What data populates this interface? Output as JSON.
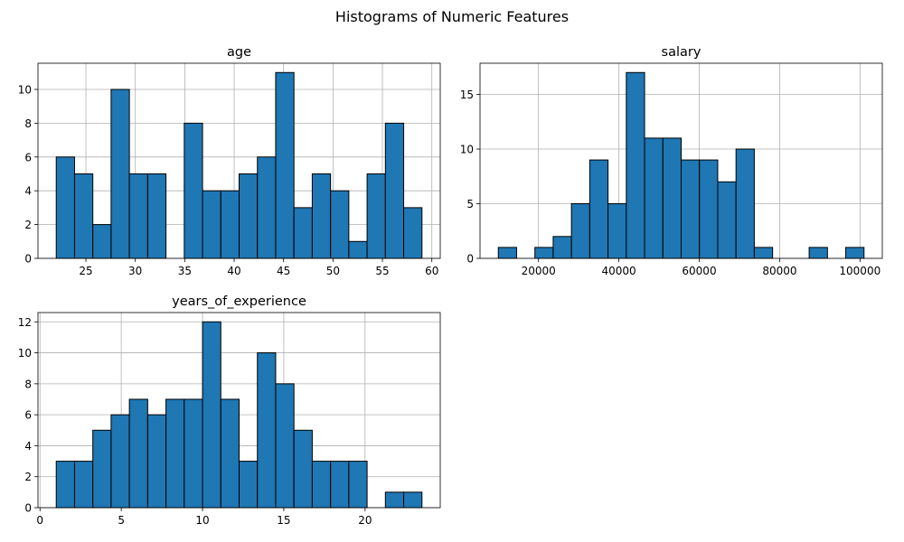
{
  "figure": {
    "title": "Histograms of Numeric Features"
  },
  "colors": {
    "bar_fill": "#1f77b4",
    "bar_edge": "#000000",
    "grid": "#b0b0b0",
    "axes": "#000000"
  },
  "chart_data": [
    {
      "type": "histogram",
      "title": "age",
      "xlabel": "",
      "ylabel": "",
      "grid": true,
      "bins": [
        {
          "x0": 22.0,
          "x1": 23.85,
          "count": 6
        },
        {
          "x0": 23.85,
          "x1": 25.7,
          "count": 5
        },
        {
          "x0": 25.7,
          "x1": 27.55,
          "count": 2
        },
        {
          "x0": 27.55,
          "x1": 29.4,
          "count": 10
        },
        {
          "x0": 29.4,
          "x1": 31.25,
          "count": 5
        },
        {
          "x0": 31.25,
          "x1": 33.1,
          "count": 5
        },
        {
          "x0": 33.1,
          "x1": 34.95,
          "count": 0
        },
        {
          "x0": 34.95,
          "x1": 36.8,
          "count": 8
        },
        {
          "x0": 36.8,
          "x1": 38.65,
          "count": 4
        },
        {
          "x0": 38.65,
          "x1": 40.5,
          "count": 4
        },
        {
          "x0": 40.5,
          "x1": 42.35,
          "count": 5
        },
        {
          "x0": 42.35,
          "x1": 44.2,
          "count": 6
        },
        {
          "x0": 44.2,
          "x1": 46.05,
          "count": 11
        },
        {
          "x0": 46.05,
          "x1": 47.9,
          "count": 3
        },
        {
          "x0": 47.9,
          "x1": 49.75,
          "count": 5
        },
        {
          "x0": 49.75,
          "x1": 51.6,
          "count": 4
        },
        {
          "x0": 51.6,
          "x1": 53.45,
          "count": 1
        },
        {
          "x0": 53.45,
          "x1": 55.3,
          "count": 5
        },
        {
          "x0": 55.3,
          "x1": 57.15,
          "count": 8
        },
        {
          "x0": 57.15,
          "x1": 59.0,
          "count": 3
        }
      ],
      "xlim": [
        20.15,
        60.85
      ],
      "ylim": [
        0,
        11.55
      ],
      "xticks": [
        25,
        30,
        35,
        40,
        45,
        50,
        55,
        60
      ],
      "xtick_labels": [
        "25",
        "30",
        "35",
        "40",
        "45",
        "50",
        "55",
        "60"
      ],
      "yticks": [
        0,
        2,
        4,
        6,
        8,
        10
      ],
      "ytick_labels": [
        "0",
        "2",
        "4",
        "6",
        "8",
        "10"
      ]
    },
    {
      "type": "histogram",
      "title": "salary",
      "xlabel": "",
      "ylabel": "",
      "grid": true,
      "bins": [
        {
          "x0": 10000,
          "x1": 14550,
          "count": 1
        },
        {
          "x0": 14550,
          "x1": 19100,
          "count": 0
        },
        {
          "x0": 19100,
          "x1": 23650,
          "count": 1
        },
        {
          "x0": 23650,
          "x1": 28200,
          "count": 2
        },
        {
          "x0": 28200,
          "x1": 32750,
          "count": 5
        },
        {
          "x0": 32750,
          "x1": 37300,
          "count": 9
        },
        {
          "x0": 37300,
          "x1": 41850,
          "count": 5
        },
        {
          "x0": 41850,
          "x1": 46400,
          "count": 17
        },
        {
          "x0": 46400,
          "x1": 50950,
          "count": 11
        },
        {
          "x0": 50950,
          "x1": 55500,
          "count": 11
        },
        {
          "x0": 55500,
          "x1": 60050,
          "count": 9
        },
        {
          "x0": 60050,
          "x1": 64600,
          "count": 9
        },
        {
          "x0": 64600,
          "x1": 69150,
          "count": 7
        },
        {
          "x0": 69150,
          "x1": 73700,
          "count": 10
        },
        {
          "x0": 73700,
          "x1": 78250,
          "count": 1
        },
        {
          "x0": 78250,
          "x1": 82800,
          "count": 0
        },
        {
          "x0": 82800,
          "x1": 87350,
          "count": 0
        },
        {
          "x0": 87350,
          "x1": 91900,
          "count": 1
        },
        {
          "x0": 91900,
          "x1": 96450,
          "count": 0
        },
        {
          "x0": 96450,
          "x1": 101000,
          "count": 1
        }
      ],
      "xlim": [
        5450,
        105550
      ],
      "ylim": [
        0,
        17.85
      ],
      "xticks": [
        20000,
        40000,
        60000,
        80000,
        100000
      ],
      "xtick_labels": [
        "20000",
        "40000",
        "60000",
        "80000",
        "100000"
      ],
      "yticks": [
        0,
        5,
        10,
        15
      ],
      "ytick_labels": [
        "0",
        "5",
        "10",
        "15"
      ]
    },
    {
      "type": "histogram",
      "title": "years_of_experience",
      "xlabel": "",
      "ylabel": "",
      "grid": true,
      "bins": [
        {
          "x0": 1.0,
          "x1": 2.125,
          "count": 3
        },
        {
          "x0": 2.125,
          "x1": 3.25,
          "count": 3
        },
        {
          "x0": 3.25,
          "x1": 4.375,
          "count": 5
        },
        {
          "x0": 4.375,
          "x1": 5.5,
          "count": 6
        },
        {
          "x0": 5.5,
          "x1": 6.625,
          "count": 7
        },
        {
          "x0": 6.625,
          "x1": 7.75,
          "count": 6
        },
        {
          "x0": 7.75,
          "x1": 8.875,
          "count": 7
        },
        {
          "x0": 8.875,
          "x1": 10.0,
          "count": 7
        },
        {
          "x0": 10.0,
          "x1": 11.125,
          "count": 12
        },
        {
          "x0": 11.125,
          "x1": 12.25,
          "count": 7
        },
        {
          "x0": 12.25,
          "x1": 13.375,
          "count": 3
        },
        {
          "x0": 13.375,
          "x1": 14.5,
          "count": 10
        },
        {
          "x0": 14.5,
          "x1": 15.625,
          "count": 8
        },
        {
          "x0": 15.625,
          "x1": 16.75,
          "count": 5
        },
        {
          "x0": 16.75,
          "x1": 17.875,
          "count": 3
        },
        {
          "x0": 17.875,
          "x1": 19.0,
          "count": 3
        },
        {
          "x0": 19.0,
          "x1": 20.125,
          "count": 3
        },
        {
          "x0": 20.125,
          "x1": 21.25,
          "count": 0
        },
        {
          "x0": 21.25,
          "x1": 22.375,
          "count": 1
        },
        {
          "x0": 22.375,
          "x1": 23.5,
          "count": 1
        }
      ],
      "xlim": [
        -0.125,
        24.625
      ],
      "ylim": [
        0,
        12.6
      ],
      "xticks": [
        0,
        5,
        10,
        15,
        20
      ],
      "xtick_labels": [
        "0",
        "5",
        "10",
        "15",
        "20"
      ],
      "yticks": [
        0,
        2,
        4,
        6,
        8,
        10,
        12
      ],
      "ytick_labels": [
        "0",
        "2",
        "4",
        "6",
        "8",
        "10",
        "12"
      ]
    }
  ]
}
